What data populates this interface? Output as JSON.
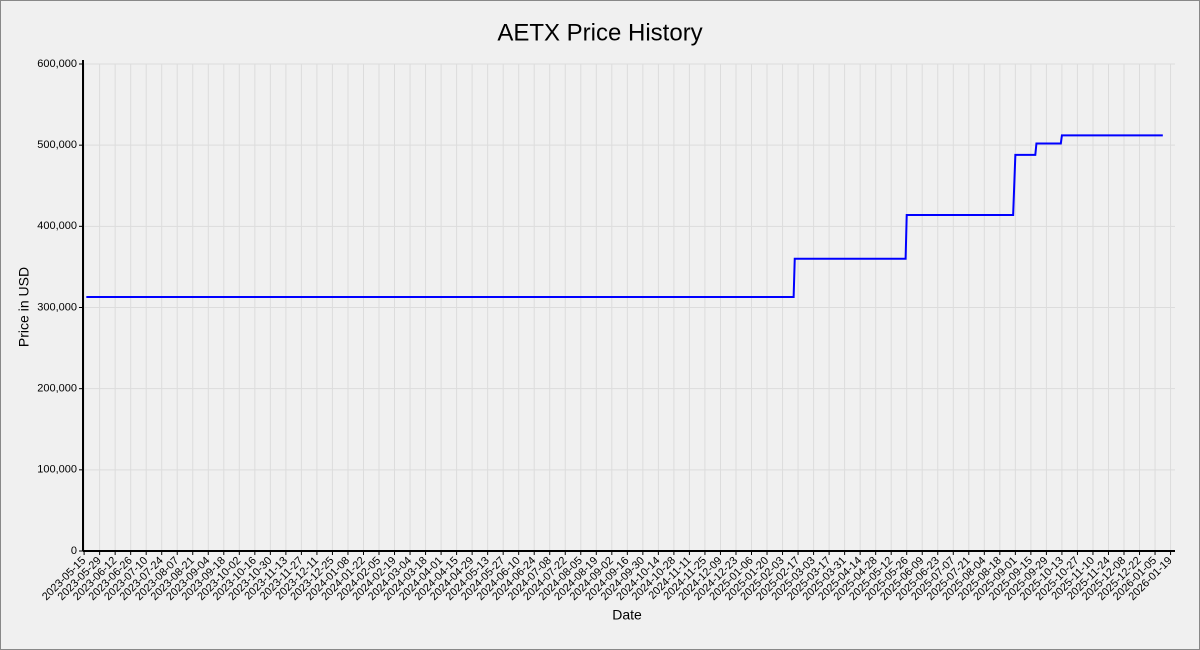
{
  "chart_data": {
    "type": "line",
    "title": "AETX Price History",
    "x_label": "Date",
    "y_label": "Price in USD",
    "x": [
      "2023-05-17",
      "2025-02-13",
      "2025-02-14",
      "2025-05-25",
      "2025-05-26",
      "2025-08-30",
      "2025-09-01",
      "2025-09-19",
      "2025-09-20",
      "2025-10-12",
      "2025-10-13",
      "2026-01-12"
    ],
    "series": [
      {
        "name": "AETX",
        "color": "#0000ff",
        "values": [
          313000,
          313000,
          360000,
          360000,
          414000,
          414000,
          488000,
          488000,
          502000,
          502000,
          512000,
          512000
        ]
      }
    ],
    "xlim": [
      "2023-05-14",
      "2026-01-23"
    ],
    "xticks": [
      "2023-05-15",
      "2023-05-29",
      "2023-06-12",
      "2023-06-26",
      "2023-07-10",
      "2023-07-24",
      "2023-08-07",
      "2023-08-21",
      "2023-09-04",
      "2023-09-18",
      "2023-10-02",
      "2023-10-16",
      "2023-10-30",
      "2023-11-13",
      "2023-11-27",
      "2023-12-11",
      "2023-12-25",
      "2024-01-08",
      "2024-01-22",
      "2024-02-05",
      "2024-02-19",
      "2024-03-04",
      "2024-03-18",
      "2024-04-01",
      "2024-04-15",
      "2024-04-29",
      "2024-05-13",
      "2024-05-27",
      "2024-06-10",
      "2024-06-24",
      "2024-07-08",
      "2024-07-22",
      "2024-08-05",
      "2024-08-19",
      "2024-09-02",
      "2024-09-16",
      "2024-09-30",
      "2024-10-14",
      "2024-10-28",
      "2024-11-11",
      "2024-11-25",
      "2024-12-09",
      "2024-12-23",
      "2025-01-06",
      "2025-01-20",
      "2025-02-03",
      "2025-02-17",
      "2025-03-03",
      "2025-03-17",
      "2025-03-31",
      "2025-04-14",
      "2025-04-28",
      "2025-05-12",
      "2025-05-26",
      "2025-06-09",
      "2025-06-23",
      "2025-07-07",
      "2025-07-21",
      "2025-08-04",
      "2025-08-18",
      "2025-09-01",
      "2025-09-15",
      "2025-09-29",
      "2025-10-13",
      "2025-10-27",
      "2025-11-10",
      "2025-11-24",
      "2025-12-08",
      "2025-12-22",
      "2026-01-05",
      "2026-01-19"
    ],
    "ylim": [
      0,
      600000
    ],
    "yticks": [
      0,
      {
        "value": 100000,
        "label": "100,000"
      },
      {
        "value": 200000,
        "label": "200,000"
      },
      {
        "value": 300000,
        "label": "300,000"
      },
      {
        "value": 400000,
        "label": "400,000"
      },
      {
        "value": 500000,
        "label": "500,000"
      },
      {
        "value": 600000,
        "label": "600,000"
      }
    ],
    "grid": true
  }
}
